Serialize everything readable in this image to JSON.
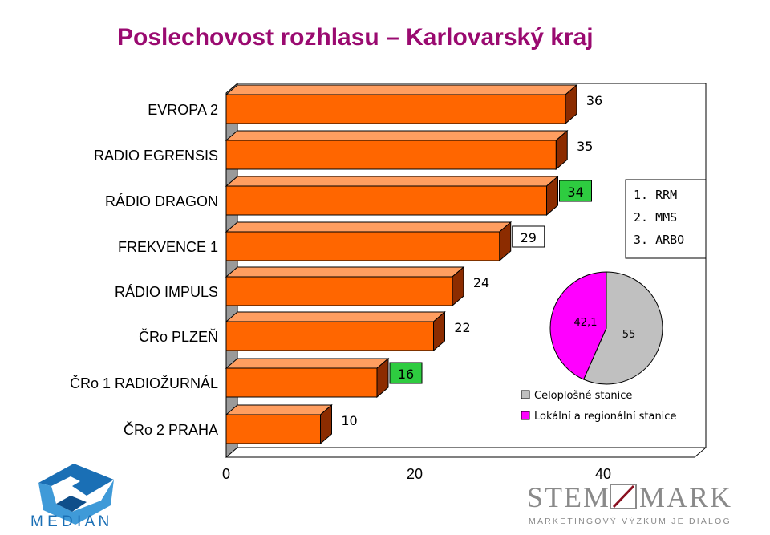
{
  "title": "Poslechovost rozhlasu – Karlovarský kraj",
  "colors": {
    "title": "#9a0a70",
    "bar_front": "#ff6600",
    "bar_top": "#ff9e60",
    "bar_side": "#8c2c00",
    "wall": "#9a9a9a",
    "highlight_label": "#2ecc40",
    "pie_celoplosne": "#c0c0c0",
    "pie_lokalni": "#ff00ff"
  },
  "chart_data": [
    {
      "type": "bar",
      "orientation": "horizontal",
      "categories": [
        "EVROPA 2",
        "RADIO EGRENSIS",
        "RÁDIO DRAGON",
        "FREKVENCE 1",
        "RÁDIO IMPULS",
        "ČRo PLZEŇ",
        "ČRo 1 RADIOŽURNÁL",
        "ČRo 2 PRAHA"
      ],
      "values": [
        36,
        35,
        34,
        29,
        24,
        22,
        16,
        10
      ],
      "value_labels": [
        "36",
        "35",
        "34",
        "29",
        "24",
        "22",
        "16",
        "10"
      ],
      "highlighted_value_labels": [
        2,
        6
      ],
      "boxed_value_labels": [
        3
      ],
      "xlim": [
        0,
        50
      ],
      "xticks": [
        "0",
        "20",
        "40"
      ],
      "grid": false,
      "style": "3d"
    },
    {
      "type": "pie",
      "labels": [
        "Celoplošné stanice",
        "Lokální a regionální stanice"
      ],
      "values": [
        55,
        42.1
      ],
      "value_labels": [
        "55",
        "42,1"
      ],
      "legend_position": "bottom"
    }
  ],
  "ranking_box": [
    "1. RRM",
    "2. MMS",
    "3. ARBO"
  ],
  "logos": {
    "median": "M E D I A N",
    "stem_mark": "STEM",
    "stem_mark2": "MARK",
    "stem_tagline": "MARKETINGOVÝ VÝZKUM JE DIALOG"
  }
}
